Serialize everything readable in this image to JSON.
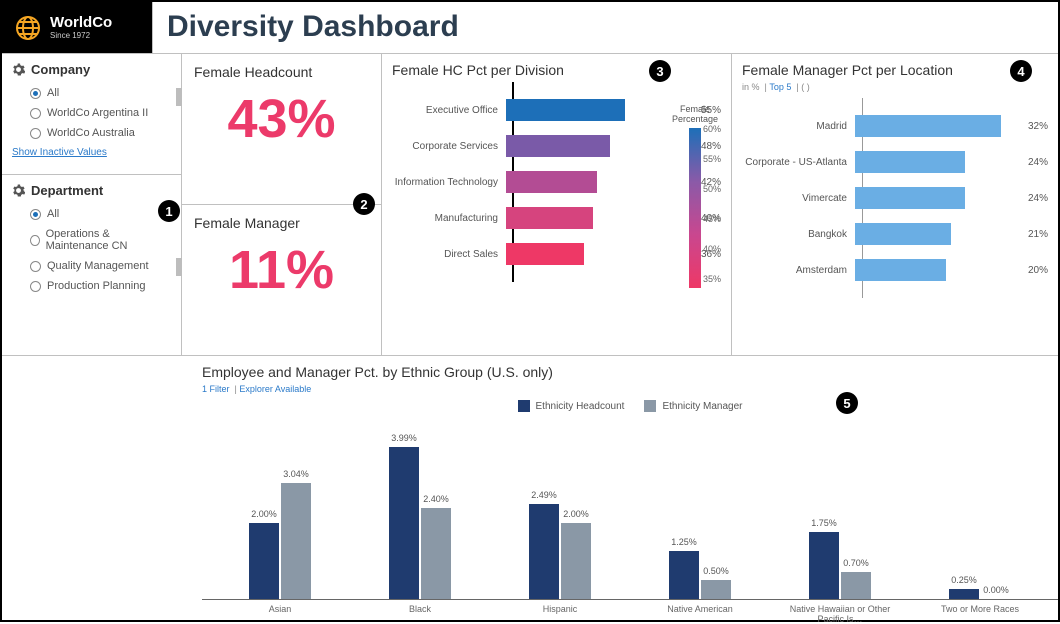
{
  "brand": {
    "name": "WorldCo",
    "sub": "Since 1972"
  },
  "page_title": "Diversity Dashboard",
  "callouts": [
    "1",
    "2",
    "3",
    "4",
    "5"
  ],
  "sidebar": {
    "company": {
      "title": "Company",
      "items": [
        {
          "label": "All",
          "checked": true
        },
        {
          "label": "WorldCo Argentina II",
          "checked": false
        },
        {
          "label": "WorldCo Australia",
          "checked": false
        }
      ]
    },
    "show_inactive": "Show Inactive Values",
    "department": {
      "title": "Department",
      "items": [
        {
          "label": "All",
          "checked": true
        },
        {
          "label": "Operations & Maintenance CN",
          "checked": false
        },
        {
          "label": "Quality Management",
          "checked": false
        },
        {
          "label": "Production Planning",
          "checked": false
        }
      ]
    }
  },
  "kpi": {
    "headcount": {
      "title": "Female Headcount",
      "value": "43%"
    },
    "manager": {
      "title": "Female Manager",
      "value": "11%"
    }
  },
  "division_chart": {
    "title": "Female HC Pct per Division",
    "legend_title": "Female Percentage",
    "ticks": [
      "60%",
      "55%",
      "50%",
      "45%",
      "40%",
      "35%"
    ],
    "max": 60,
    "rows": [
      {
        "label": "Executive Office",
        "value": 55,
        "display": "55%",
        "color": "#1d6fb8"
      },
      {
        "label": "Corporate Services",
        "value": 48,
        "display": "48%",
        "color": "#7a5aa8"
      },
      {
        "label": "Information Technology",
        "value": 42,
        "display": "42%",
        "color": "#b34c94"
      },
      {
        "label": "Manufacturing",
        "value": 40,
        "display": "40%",
        "color": "#d6447e"
      },
      {
        "label": "Direct Sales",
        "value": 36,
        "display": "36%",
        "color": "#ee3866"
      }
    ]
  },
  "location_chart": {
    "title": "Female Manager Pct per Location",
    "sub_left": "in %",
    "sub_link": "Top 5",
    "sub_right": "( )",
    "max": 35,
    "bar_color": "#6aaee4",
    "rows": [
      {
        "label": "Madrid",
        "value": 32,
        "display": "32%"
      },
      {
        "label": "Corporate - US-Atlanta",
        "value": 24,
        "display": "24%"
      },
      {
        "label": "Vimercate",
        "value": 24,
        "display": "24%"
      },
      {
        "label": "Bangkok",
        "value": 21,
        "display": "21%"
      },
      {
        "label": "Amsterdam",
        "value": 20,
        "display": "20%"
      }
    ]
  },
  "ethnic_chart": {
    "title": "Employee and Manager Pct. by Ethnic Group (U.S. only)",
    "sub_left": "1 Filter",
    "sub_link": "Explorer Available",
    "legend": [
      {
        "label": "Ethnicity Headcount",
        "color": "#1f3b6f"
      },
      {
        "label": "Ethnicity Manager",
        "color": "#8a98a6"
      }
    ],
    "max": 4.2,
    "groups": [
      {
        "cat": "Asian",
        "a": 2.0,
        "a_label": "2.00%",
        "b": 3.04,
        "b_label": "3.04%"
      },
      {
        "cat": "Black",
        "a": 3.99,
        "a_label": "3.99%",
        "b": 2.4,
        "b_label": "2.40%"
      },
      {
        "cat": "Hispanic",
        "a": 2.49,
        "a_label": "2.49%",
        "b": 2.0,
        "b_label": "2.00%"
      },
      {
        "cat": "Native American",
        "a": 1.25,
        "a_label": "1.25%",
        "b": 0.5,
        "b_label": "0.50%"
      },
      {
        "cat": "Native Hawaiian or Other Pacific Is…",
        "a": 1.75,
        "a_label": "1.75%",
        "b": 0.7,
        "b_label": "0.70%"
      },
      {
        "cat": "Two or More Races",
        "a": 0.25,
        "a_label": "0.25%",
        "b": 0.0,
        "b_label": "0.00%"
      }
    ]
  }
}
